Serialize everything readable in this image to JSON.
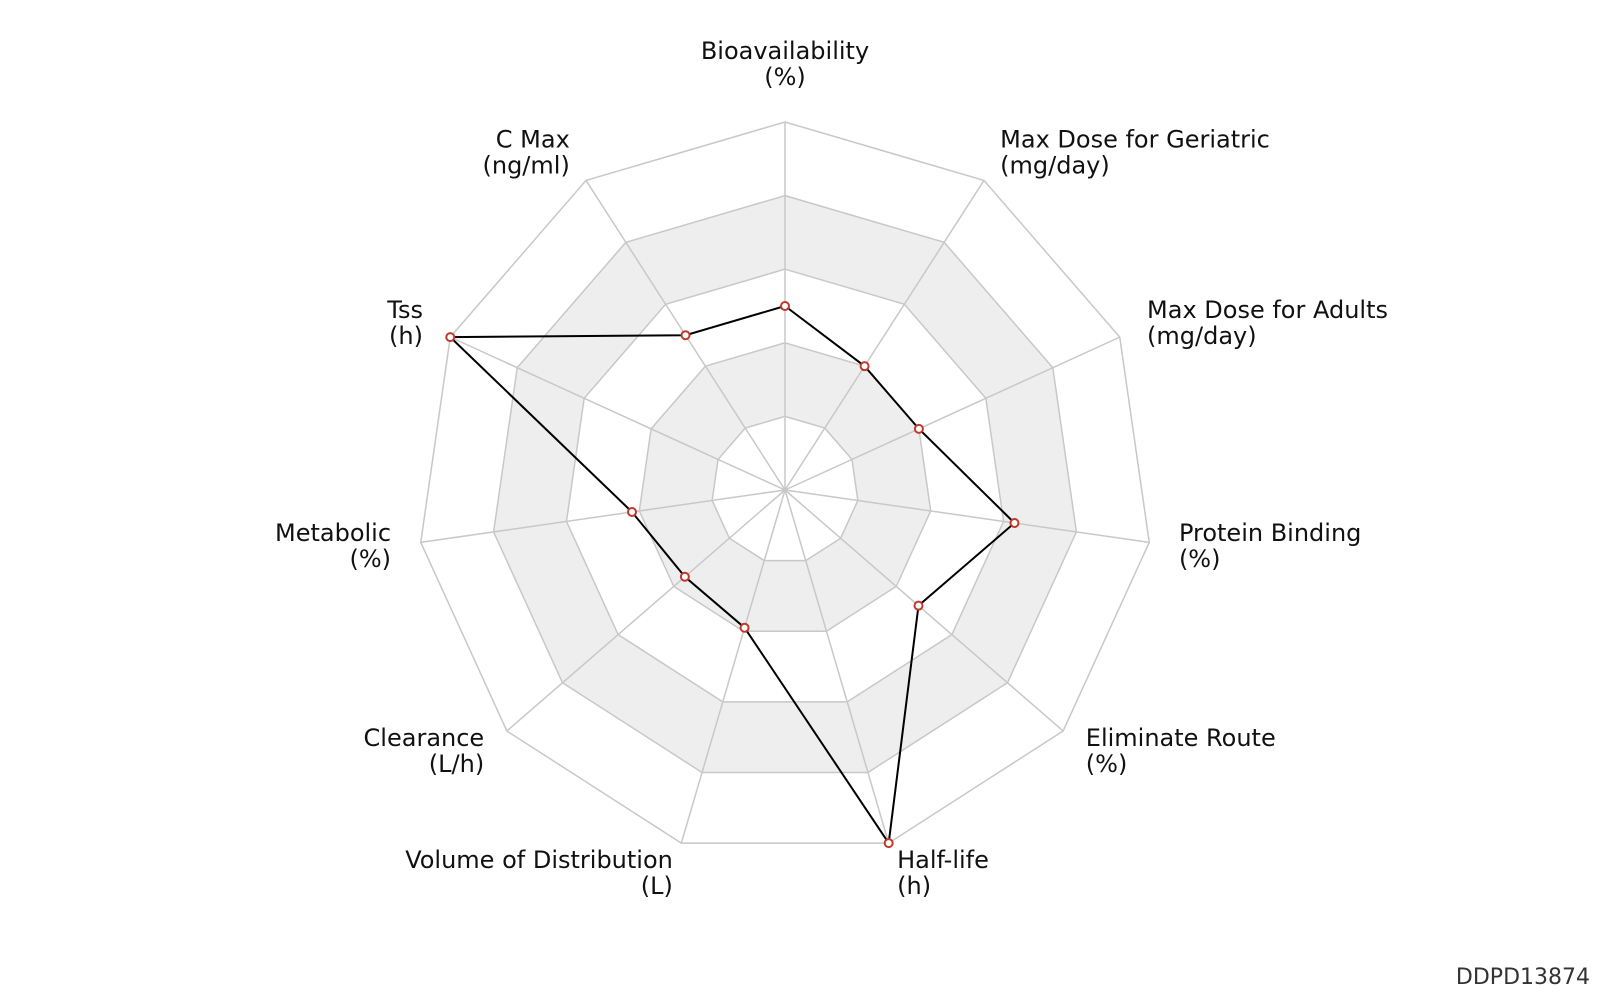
{
  "chart_data": {
    "type": "radar",
    "categories": [
      "Bioavailability",
      "Max Dose for Geriatric",
      "Max Dose for Adults",
      "Protein Binding",
      "Eliminate Route",
      "Half-life",
      "Volume of Distribution",
      "Clearance",
      "Metabolic",
      "Tss",
      "C Max"
    ],
    "units": [
      "(%)",
      "(mg/day)",
      "(mg/day)",
      "(%)",
      "(%)",
      "(h)",
      "(L)",
      "(L/h)",
      "(%)",
      "(h)",
      "(ng/ml)"
    ],
    "values": [
      0.5,
      0.4,
      0.4,
      0.63,
      0.48,
      1.0,
      0.39,
      0.36,
      0.42,
      1.0,
      0.5
    ],
    "color": "#000000",
    "marker_color": "#c0392b",
    "ylim": [
      0,
      1
    ],
    "yticks": [
      0.2,
      0.4,
      0.6,
      0.8,
      1.0
    ],
    "grid": true,
    "annotation": "DDPD13874"
  }
}
